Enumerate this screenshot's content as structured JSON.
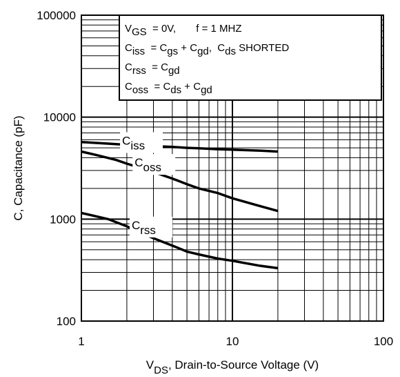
{
  "chart_data": {
    "type": "line",
    "x_scale": "log",
    "y_scale": "log",
    "xlim": [
      1,
      100
    ],
    "ylim": [
      100,
      100000
    ],
    "grid": true,
    "xlabel": {
      "main": "V",
      "sub": "DS",
      "rest": ", Drain-to-Source Voltage (V)"
    },
    "ylabel": "C, Capacitance (pF)",
    "x_ticks": [
      {
        "value": 1,
        "label": "1"
      },
      {
        "value": 10,
        "label": "10"
      },
      {
        "value": 100,
        "label": "100"
      }
    ],
    "y_ticks": [
      {
        "value": 100,
        "label": "100"
      },
      {
        "value": 1000,
        "label": "1000"
      },
      {
        "value": 10000,
        "label": "10000"
      },
      {
        "value": 100000,
        "label": "100000"
      }
    ],
    "legend_box": {
      "placement": "top-right",
      "lines": [
        [
          {
            "t": "V"
          },
          {
            "t": "GS",
            "sub": true
          },
          {
            "t": "  = 0V,       f = 1 MHZ"
          }
        ],
        [
          {
            "t": "C"
          },
          {
            "t": "iss",
            "sub": true
          },
          {
            "t": "  = C"
          },
          {
            "t": "gs",
            "sub": true
          },
          {
            "t": " + C"
          },
          {
            "t": "gd",
            "sub": true
          },
          {
            "t": ",  C"
          },
          {
            "t": "ds",
            "sub": true
          },
          {
            "t": " SHORTED"
          }
        ],
        [
          {
            "t": "C"
          },
          {
            "t": "rss",
            "sub": true
          },
          {
            "t": "  = C"
          },
          {
            "t": "gd",
            "sub": true
          }
        ],
        [
          {
            "t": "C"
          },
          {
            "t": "oss",
            "sub": true
          },
          {
            "t": "  = C"
          },
          {
            "t": "ds",
            "sub": true
          },
          {
            "t": " + C"
          },
          {
            "t": "gd",
            "sub": true
          }
        ]
      ]
    },
    "series": [
      {
        "name": "Ciss",
        "label": {
          "main": "C",
          "sub": "iss",
          "at_x": 1.9
        },
        "x": [
          1,
          1.5,
          2,
          3,
          4,
          5,
          6,
          8,
          10,
          15,
          20
        ],
        "y": [
          5700,
          5500,
          5350,
          5200,
          5100,
          5000,
          4950,
          4850,
          4800,
          4700,
          4600
        ]
      },
      {
        "name": "Coss",
        "label": {
          "main": "C",
          "sub": "oss",
          "at_x": 2.3
        },
        "x": [
          1,
          1.3,
          1.7,
          2,
          3,
          4,
          5,
          6,
          8,
          10,
          15,
          20
        ],
        "y": [
          4600,
          4200,
          3800,
          3500,
          2900,
          2500,
          2200,
          2000,
          1800,
          1600,
          1350,
          1200
        ]
      },
      {
        "name": "Crss",
        "label": {
          "main": "C",
          "sub": "rss",
          "at_x": 2.2
        },
        "x": [
          1,
          1.5,
          2,
          3,
          4,
          5,
          6,
          8,
          10,
          15,
          20
        ],
        "y": [
          1150,
          1000,
          850,
          650,
          550,
          480,
          450,
          410,
          390,
          350,
          330
        ]
      }
    ]
  }
}
